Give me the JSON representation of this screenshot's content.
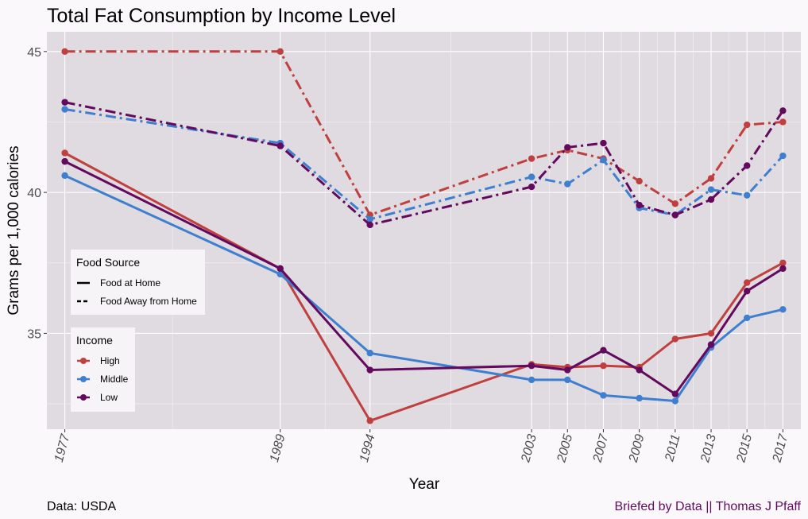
{
  "chart_data": {
    "type": "line",
    "title": "Total Fat Consumption by Income Level",
    "xlabel": "Year",
    "ylabel": "Grams per 1,000 calories",
    "x": [
      1977,
      1989,
      1994,
      2003,
      2005,
      2007,
      2009,
      2011,
      2013,
      2015,
      2017
    ],
    "x_ticks": [
      "1977",
      "1989",
      "1994",
      "2003",
      "2005",
      "2007",
      "2009",
      "2011",
      "2013",
      "2015",
      "2017"
    ],
    "y_ticks": [
      35,
      40,
      45
    ],
    "ylim": [
      31.6,
      45.7
    ],
    "xlim": [
      1976,
      2018
    ],
    "grid": true,
    "series": [
      {
        "income": "High",
        "source": "Food at Home",
        "linestyle": "solid",
        "color": "#c0403f",
        "values": [
          41.4,
          37.3,
          31.9,
          33.9,
          33.8,
          33.85,
          33.8,
          34.8,
          35.0,
          36.8,
          37.5
        ]
      },
      {
        "income": "Middle",
        "source": "Food at Home",
        "linestyle": "solid",
        "color": "#3f7fcf",
        "values": [
          40.6,
          37.1,
          34.3,
          33.35,
          33.35,
          32.8,
          32.7,
          32.6,
          34.5,
          35.55,
          35.85
        ]
      },
      {
        "income": "Low",
        "source": "Food at Home",
        "linestyle": "solid",
        "color": "#630a5e",
        "values": [
          41.1,
          37.3,
          33.7,
          33.85,
          33.7,
          34.4,
          33.7,
          32.85,
          34.6,
          36.5,
          37.3
        ]
      },
      {
        "income": "High",
        "source": "Food Away from Home",
        "linestyle": "dashed",
        "color": "#c0403f",
        "values": [
          45.0,
          45.0,
          39.2,
          41.2,
          41.5,
          41.2,
          40.4,
          39.6,
          40.5,
          42.4,
          42.5
        ]
      },
      {
        "income": "Middle",
        "source": "Food Away from Home",
        "linestyle": "dashed",
        "color": "#3f7fcf",
        "values": [
          42.95,
          41.75,
          39.05,
          40.55,
          40.3,
          41.15,
          39.45,
          39.2,
          40.1,
          39.9,
          41.3
        ]
      },
      {
        "income": "Low",
        "source": "Food Away from Home",
        "linestyle": "dashed",
        "color": "#630a5e",
        "values": [
          43.2,
          41.65,
          38.85,
          40.2,
          41.6,
          41.75,
          39.55,
          39.2,
          39.75,
          40.95,
          42.9
        ]
      }
    ],
    "legends": {
      "source": {
        "title": "Food Source",
        "entries": [
          {
            "label": "Food at Home",
            "linestyle": "solid"
          },
          {
            "label": "Food Away from Home",
            "linestyle": "dashed"
          }
        ]
      },
      "income": {
        "title": "Income",
        "entries": [
          {
            "label": "High",
            "color": "#c0403f"
          },
          {
            "label": "Middle",
            "color": "#3f7fcf"
          },
          {
            "label": "Low",
            "color": "#630a5e"
          }
        ]
      }
    },
    "legend_position": "left",
    "caption_left": "Data: USDA",
    "caption_right": "Briefed by Data || Thomas J Pfaff",
    "caption_right_color": "#630a5e",
    "panel_color": "#e0dbe0",
    "background_color": "#faf8fb"
  }
}
